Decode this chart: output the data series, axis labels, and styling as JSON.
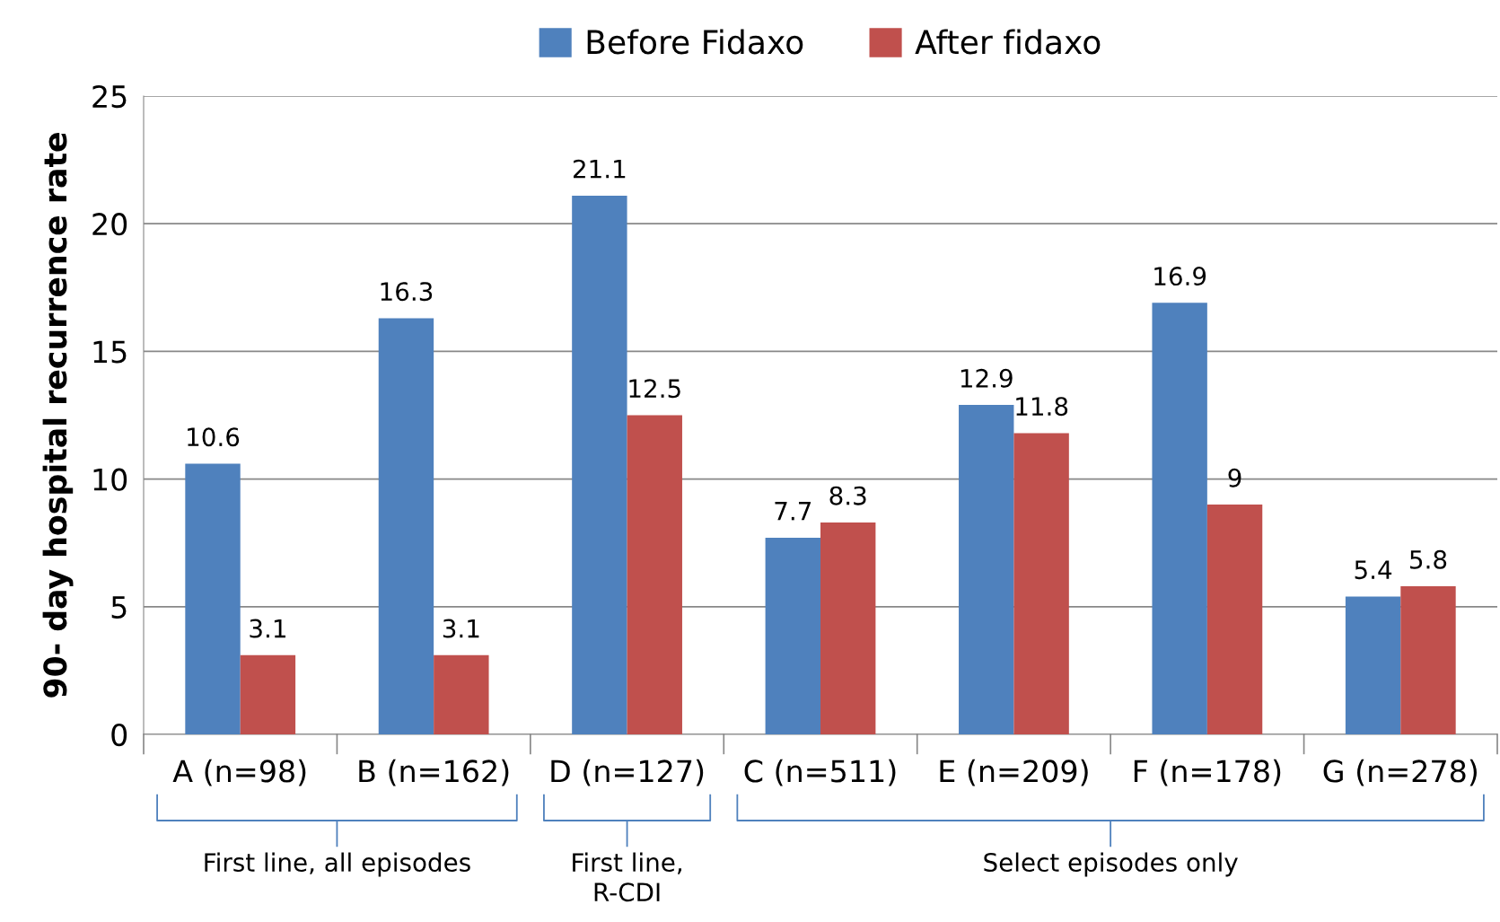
{
  "chart_data": {
    "type": "bar",
    "ylabel": "90- day hospital recurrence rate",
    "categories": [
      "A (n=98)",
      "B (n=162)",
      "D (n=127)",
      "C (n=511)",
      "E (n=209)",
      "F (n=178)",
      "G (n=278)"
    ],
    "series": [
      {
        "name": "Before Fidaxo",
        "color": "#4f81bd",
        "values": [
          10.6,
          16.3,
          21.1,
          7.7,
          12.9,
          16.9,
          5.4
        ]
      },
      {
        "name": "After fidaxo",
        "color": "#c0504d",
        "values": [
          3.1,
          3.1,
          12.5,
          8.3,
          11.8,
          9,
          5.8
        ]
      }
    ],
    "ylim": [
      0,
      25
    ],
    "yticks": [
      0,
      5,
      10,
      15,
      20,
      25
    ],
    "grid": "y",
    "legend": "top",
    "data_labels": true,
    "annotations": [
      "First line, all episodes",
      "First line,\nR-CDI",
      "Select episodes only"
    ]
  }
}
